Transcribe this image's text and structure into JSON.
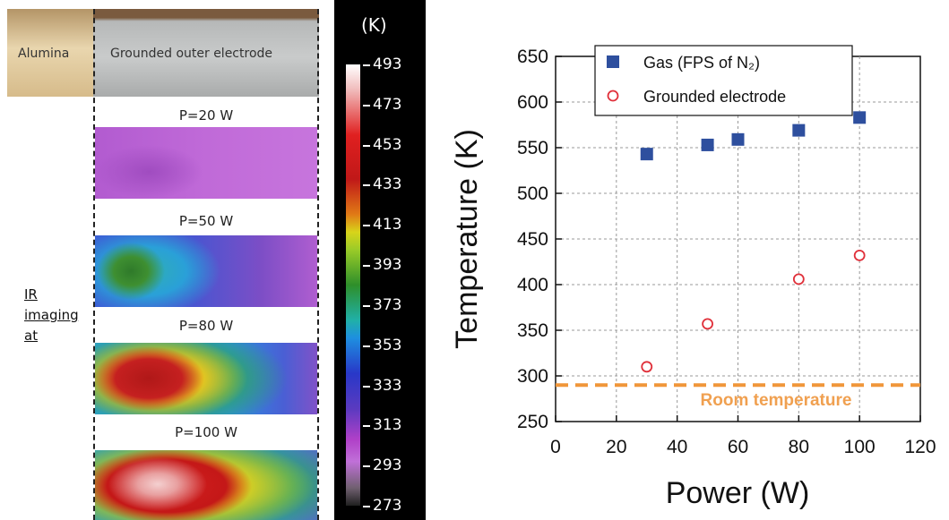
{
  "ir_panel": {
    "photo_labels": [
      "Alumina",
      "Grounded outer electrode"
    ],
    "power_labels": [
      "P=20 W",
      "P=50 W",
      "P=80 W",
      "P=100 W"
    ],
    "side_label": [
      "IR",
      "imaging",
      "at"
    ]
  },
  "colorbar": {
    "unit": "(K)",
    "tick_labels": [
      "493",
      "473",
      "453",
      "433",
      "413",
      "393",
      "373",
      "353",
      "333",
      "313",
      "293",
      "273"
    ]
  },
  "chart_data": {
    "type": "scatter",
    "xlabel": "Power (W)",
    "ylabel": "Temperature (K)",
    "xlim": [
      0,
      120
    ],
    "ylim": [
      250,
      650
    ],
    "xticks": [
      0,
      20,
      40,
      60,
      80,
      100,
      120
    ],
    "yticks": [
      250,
      300,
      350,
      400,
      450,
      500,
      550,
      600,
      650
    ],
    "grid": true,
    "legend_position": "top-left",
    "series": [
      {
        "name": "Gas (FPS of N₂)",
        "marker": "filled-square",
        "color": "#2e4f9e",
        "x": [
          30,
          50,
          60,
          80,
          100
        ],
        "y": [
          543,
          553,
          559,
          569,
          583
        ]
      },
      {
        "name": "Grounded electrode",
        "marker": "open-circle",
        "color": "#e0303a",
        "x": [
          30,
          50,
          80,
          100
        ],
        "y": [
          310,
          357,
          406,
          432
        ]
      }
    ],
    "reference_line": {
      "label": "Room temperature",
      "y": 290,
      "color": "#f0963a",
      "style": "dashed"
    }
  }
}
